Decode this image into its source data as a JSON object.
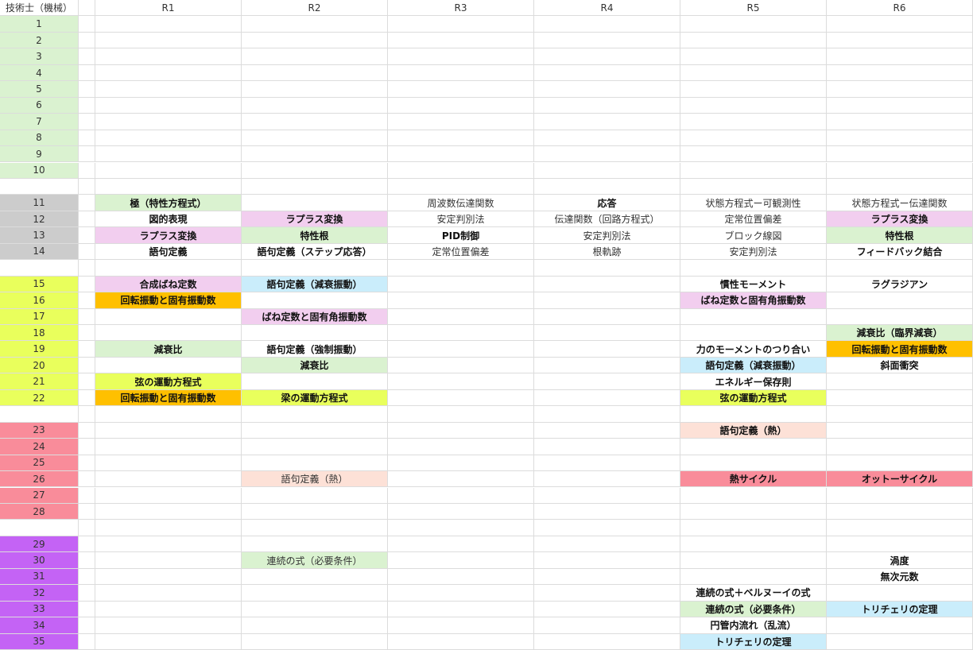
{
  "header": {
    "corner": "技術士（機械）",
    "columns": [
      "R1",
      "R2",
      "R3",
      "R4",
      "R5",
      "R6"
    ]
  },
  "groups": [
    {
      "color": "#daf2d0",
      "rows": [
        {
          "label": "1",
          "cells": [
            null,
            null,
            null,
            null,
            null,
            null
          ]
        },
        {
          "label": "2",
          "cells": [
            null,
            null,
            null,
            null,
            null,
            null
          ]
        },
        {
          "label": "3",
          "cells": [
            null,
            null,
            null,
            null,
            null,
            null
          ]
        },
        {
          "label": "4",
          "cells": [
            null,
            null,
            null,
            null,
            null,
            null
          ]
        },
        {
          "label": "5",
          "cells": [
            null,
            null,
            null,
            null,
            null,
            null
          ]
        },
        {
          "label": "6",
          "cells": [
            null,
            null,
            null,
            null,
            null,
            null
          ]
        },
        {
          "label": "7",
          "cells": [
            null,
            null,
            null,
            null,
            null,
            null
          ]
        },
        {
          "label": "8",
          "cells": [
            null,
            null,
            null,
            null,
            null,
            null
          ]
        },
        {
          "label": "9",
          "cells": [
            null,
            null,
            null,
            null,
            null,
            null
          ]
        },
        {
          "label": "10",
          "cells": [
            null,
            null,
            null,
            null,
            null,
            null
          ]
        }
      ]
    },
    {
      "color": "#cccccc",
      "rows": [
        {
          "label": "11",
          "cells": [
            {
              "text": "極（特性方程式）",
              "fill": "#daf2d0",
              "bold": true
            },
            null,
            {
              "text": "周波数伝達関数",
              "bold": false
            },
            {
              "text": "応答",
              "bold": true
            },
            {
              "text": "状態方程式ー可観測性",
              "bold": false
            },
            {
              "text": "状態方程式ー伝達関数",
              "bold": false
            }
          ]
        },
        {
          "label": "12",
          "cells": [
            {
              "text": "図的表現",
              "bold": true
            },
            {
              "text": "ラプラス変換",
              "fill": "#f2ceef",
              "bold": true
            },
            {
              "text": "安定判別法",
              "bold": false
            },
            {
              "text": "伝達関数（回路方程式）",
              "bold": false
            },
            {
              "text": "定常位置偏差",
              "bold": false
            },
            {
              "text": "ラプラス変換",
              "fill": "#f2ceef",
              "bold": true
            }
          ]
        },
        {
          "label": "13",
          "cells": [
            {
              "text": "ラプラス変換",
              "fill": "#f2ceef",
              "bold": true
            },
            {
              "text": "特性根",
              "fill": "#daf2d0",
              "bold": true
            },
            {
              "text": "PID制御",
              "bold": true
            },
            {
              "text": "安定判別法",
              "bold": false
            },
            {
              "text": "ブロック線図",
              "bold": false
            },
            {
              "text": "特性根",
              "fill": "#daf2d0",
              "bold": true
            }
          ]
        },
        {
          "label": "14",
          "cells": [
            {
              "text": "語句定義",
              "bold": true
            },
            {
              "text": "語句定義（ステップ応答）",
              "bold": true
            },
            {
              "text": "定常位置偏差",
              "bold": false
            },
            {
              "text": "根軌跡",
              "bold": false
            },
            {
              "text": "安定判別法",
              "bold": false
            },
            {
              "text": "フィードバック結合",
              "bold": true
            }
          ]
        }
      ]
    },
    {
      "color": "#e9ff5c",
      "rows": [
        {
          "label": "15",
          "cells": [
            {
              "text": "合成ばね定数",
              "fill": "#f2ceef",
              "bold": true
            },
            {
              "text": "語句定義（減衰振動）",
              "fill": "#caedfb",
              "bold": true
            },
            null,
            null,
            {
              "text": "慣性モーメント",
              "bold": true
            },
            {
              "text": "ラグラジアン",
              "bold": true
            }
          ]
        },
        {
          "label": "16",
          "cells": [
            {
              "text": "回転振動と固有振動数",
              "fill": "#ffc000",
              "bold": true
            },
            null,
            null,
            null,
            {
              "text": "ばね定数と固有角振動数",
              "fill": "#f2ceef",
              "bold": true
            },
            null
          ]
        },
        {
          "label": "17",
          "cells": [
            null,
            {
              "text": "ばね定数と固有角振動数",
              "fill": "#f2ceef",
              "bold": true
            },
            null,
            null,
            null,
            null
          ]
        },
        {
          "label": "18",
          "cells": [
            null,
            null,
            null,
            null,
            null,
            {
              "text": "減衰比（臨界減衰）",
              "fill": "#daf2d0",
              "bold": true
            }
          ]
        },
        {
          "label": "19",
          "cells": [
            {
              "text": "減衰比",
              "fill": "#daf2d0",
              "bold": true
            },
            {
              "text": "語句定義（強制振動）",
              "bold": true
            },
            null,
            null,
            {
              "text": "力のモーメントのつり合い",
              "bold": true
            },
            {
              "text": "回転振動と固有振動数",
              "fill": "#ffc000",
              "bold": true
            }
          ]
        },
        {
          "label": "20",
          "cells": [
            null,
            {
              "text": "減衰比",
              "fill": "#daf2d0",
              "bold": true
            },
            null,
            null,
            {
              "text": "語句定義（減衰振動）",
              "fill": "#caedfb",
              "bold": true
            },
            {
              "text": "斜面衝突",
              "bold": true
            }
          ]
        },
        {
          "label": "21",
          "cells": [
            {
              "text": "弦の運動方程式",
              "fill": "#e9ff5c",
              "bold": true
            },
            null,
            null,
            null,
            {
              "text": "エネルギー保存則",
              "bold": true
            },
            null
          ]
        },
        {
          "label": "22",
          "cells": [
            {
              "text": "回転振動と固有振動数",
              "fill": "#ffc000",
              "bold": true
            },
            {
              "text": "梁の運動方程式",
              "fill": "#e9ff5c",
              "bold": true
            },
            null,
            null,
            {
              "text": "弦の運動方程式",
              "fill": "#e9ff5c",
              "bold": true
            },
            null
          ]
        }
      ]
    },
    {
      "color": "#f98c9a",
      "rows": [
        {
          "label": "23",
          "cells": [
            null,
            null,
            null,
            null,
            {
              "text": "語句定義（熱）",
              "fill": "#fde1d7",
              "bold": true
            },
            null
          ]
        },
        {
          "label": "24",
          "cells": [
            null,
            null,
            null,
            null,
            null,
            null
          ]
        },
        {
          "label": "25",
          "cells": [
            null,
            null,
            null,
            null,
            null,
            null
          ]
        },
        {
          "label": "26",
          "cells": [
            null,
            {
              "text": "語句定義（熱）",
              "fill": "#fde1d7",
              "bold": false
            },
            null,
            null,
            {
              "text": "熱サイクル",
              "fill": "#f98c9a",
              "bold": true
            },
            {
              "text": "オットーサイクル",
              "fill": "#f98c9a",
              "bold": true
            }
          ]
        },
        {
          "label": "27",
          "cells": [
            null,
            null,
            null,
            null,
            null,
            null
          ]
        },
        {
          "label": "28",
          "cells": [
            null,
            null,
            null,
            null,
            null,
            null
          ]
        }
      ]
    },
    {
      "color": "#c463f5",
      "rows": [
        {
          "label": "29",
          "cells": [
            null,
            null,
            null,
            null,
            null,
            null
          ]
        },
        {
          "label": "30",
          "cells": [
            null,
            {
              "text": "連続の式（必要条件）",
              "fill": "#daf2d0",
              "bold": false
            },
            null,
            null,
            null,
            {
              "text": "渦度",
              "bold": true
            }
          ]
        },
        {
          "label": "31",
          "cells": [
            null,
            null,
            null,
            null,
            null,
            {
              "text": "無次元数",
              "bold": true
            }
          ]
        },
        {
          "label": "32",
          "cells": [
            null,
            null,
            null,
            null,
            {
              "text": "連続の式＋ベルヌーイの式",
              "bold": true
            },
            null
          ]
        },
        {
          "label": "33",
          "cells": [
            null,
            null,
            null,
            null,
            {
              "text": "連続の式（必要条件）",
              "fill": "#daf2d0",
              "bold": true
            },
            {
              "text": "トリチェリの定理",
              "fill": "#caedfb",
              "bold": true
            }
          ]
        },
        {
          "label": "34",
          "cells": [
            null,
            null,
            null,
            null,
            {
              "text": "円管内流れ（乱流）",
              "bold": true
            },
            null
          ]
        },
        {
          "label": "35",
          "cells": [
            null,
            null,
            null,
            null,
            {
              "text": "トリチェリの定理",
              "fill": "#caedfb",
              "bold": true
            },
            null
          ]
        }
      ]
    }
  ]
}
